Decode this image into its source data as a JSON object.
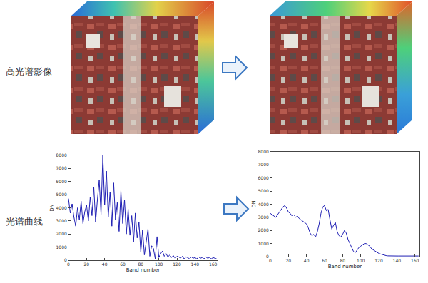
{
  "row_labels": [
    "高光谱影像",
    "光谱曲线"
  ],
  "chart_data": [
    {
      "type": "line",
      "x_label": "Band number",
      "y_label": "DN",
      "color": "#1f1fb4",
      "grid": false,
      "x": [
        0,
        2,
        4,
        6,
        8,
        10,
        12,
        14,
        16,
        18,
        20,
        22,
        24,
        26,
        28,
        30,
        32,
        34,
        36,
        38,
        40,
        42,
        44,
        46,
        48,
        50,
        52,
        54,
        56,
        58,
        60,
        62,
        64,
        66,
        68,
        70,
        72,
        74,
        76,
        78,
        80,
        82,
        84,
        86,
        88,
        90,
        92,
        94,
        96,
        98,
        100,
        102,
        104,
        106,
        108,
        110,
        112,
        114,
        116,
        118,
        120,
        122,
        124,
        126,
        128,
        130,
        132,
        134,
        136,
        138,
        140,
        142,
        144,
        146,
        148,
        150,
        152,
        154,
        156,
        158,
        160,
        162,
        164
      ],
      "values": [
        4700,
        3600,
        4300,
        3300,
        2600,
        4000,
        3100,
        4500,
        2800,
        3700,
        4200,
        3000,
        4800,
        3400,
        5600,
        2900,
        4600,
        6100,
        3500,
        8000,
        4200,
        6800,
        3300,
        5200,
        2600,
        5900,
        3100,
        4400,
        2200,
        5300,
        2800,
        4600,
        2000,
        3900,
        1900,
        3400,
        1400,
        3600,
        1700,
        2900,
        600,
        2300,
        400,
        1500,
        2400,
        300,
        1100,
        900,
        100,
        1800,
        200,
        500,
        700,
        300,
        500,
        250,
        400,
        200,
        350,
        150,
        300,
        250,
        150,
        300,
        100,
        250,
        200,
        100,
        250,
        150,
        200,
        100,
        250,
        150,
        200,
        100,
        250,
        150,
        200,
        100,
        200,
        150,
        100
      ],
      "xlim": [
        0,
        165
      ],
      "xticks": [
        0,
        20,
        40,
        60,
        80,
        100,
        120,
        140,
        160
      ],
      "ylim": [
        0,
        8000
      ],
      "yticks": [
        0,
        1000,
        2000,
        3000,
        4000,
        5000,
        6000,
        7000,
        8000
      ]
    },
    {
      "type": "line",
      "x_label": "Band number",
      "y_label": "DN",
      "color": "#1f1fb4",
      "grid": false,
      "x": [
        0,
        2,
        4,
        6,
        8,
        10,
        12,
        14,
        16,
        18,
        20,
        22,
        24,
        26,
        28,
        30,
        32,
        34,
        36,
        38,
        40,
        42,
        44,
        46,
        48,
        50,
        52,
        54,
        56,
        58,
        60,
        62,
        64,
        66,
        68,
        70,
        72,
        74,
        76,
        78,
        80,
        82,
        84,
        86,
        88,
        90,
        92,
        94,
        96,
        98,
        100,
        102,
        104,
        106,
        108,
        110,
        112,
        114,
        116,
        118,
        120,
        122,
        124,
        126,
        128,
        130,
        132,
        134,
        136,
        138,
        140,
        142,
        144,
        146,
        148,
        150,
        152,
        154,
        156,
        158,
        160,
        162,
        164
      ],
      "values": [
        3300,
        3200,
        3100,
        3000,
        3200,
        3400,
        3600,
        3800,
        3900,
        3700,
        3400,
        3300,
        3100,
        3200,
        3000,
        3100,
        2900,
        2800,
        2700,
        2600,
        2500,
        2200,
        1800,
        1600,
        1700,
        1500,
        1900,
        2500,
        3300,
        3800,
        3900,
        3500,
        3600,
        2800,
        2100,
        2400,
        2600,
        1900,
        1600,
        1500,
        1700,
        2000,
        1800,
        1300,
        1000,
        700,
        400,
        300,
        500,
        700,
        800,
        900,
        1000,
        1000,
        900,
        800,
        600,
        500,
        400,
        300,
        250,
        200,
        150,
        100,
        80,
        60,
        50,
        50,
        50,
        50,
        50,
        50,
        50,
        50,
        50,
        50,
        50,
        50,
        50,
        50,
        50,
        50,
        50
      ],
      "xlim": [
        0,
        165
      ],
      "xticks": [
        0,
        20,
        40,
        60,
        80,
        100,
        120,
        140,
        160
      ],
      "ylim": [
        0,
        8000
      ],
      "yticks": [
        0,
        1000,
        2000,
        3000,
        4000,
        5000,
        6000,
        7000,
        8000
      ]
    }
  ]
}
